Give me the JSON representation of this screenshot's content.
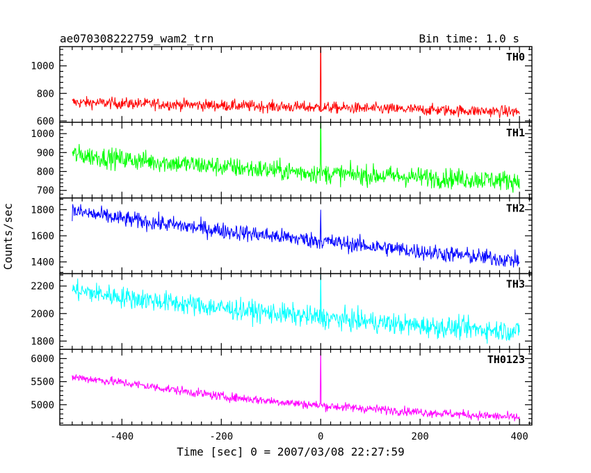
{
  "chart_data": {
    "type": "line",
    "title": "ae070308222759_wam2_trn",
    "subtitle": "Bin time: 1.0 s",
    "xlabel": "Time [sec] 0 = 2007/03/08 22:27:59",
    "ylabel": "Counts/sec",
    "xlim": [
      -525,
      425
    ],
    "x_ticks": [
      -400,
      -200,
      0,
      200,
      400
    ],
    "x_range_data": [
      -500,
      400
    ],
    "grid": false,
    "panels": [
      {
        "name": "TH0",
        "color": "#ff0000",
        "ylim": [
          590,
          1140
        ],
        "y_ticks": [
          600,
          800,
          1000
        ],
        "trend": [
          [
            -500,
            735
          ],
          [
            -300,
            720
          ],
          [
            -100,
            705
          ],
          [
            100,
            690
          ],
          [
            400,
            665
          ]
        ],
        "noise": 30,
        "spike": 1400
      },
      {
        "name": "TH1",
        "color": "#00ff00",
        "ylim": [
          660,
          1060
        ],
        "y_ticks": [
          700,
          800,
          900,
          1000
        ],
        "trend": [
          [
            -500,
            890
          ],
          [
            -400,
            865
          ],
          [
            -200,
            825
          ],
          [
            0,
            790
          ],
          [
            200,
            770
          ],
          [
            400,
            750
          ]
        ],
        "noise": 38,
        "spike": 1200
      },
      {
        "name": "TH2",
        "color": "#0000ff",
        "ylim": [
          1310,
          1890
        ],
        "y_ticks": [
          1400,
          1600,
          1800
        ],
        "trend": [
          [
            -500,
            1790
          ],
          [
            -400,
            1730
          ],
          [
            -200,
            1640
          ],
          [
            0,
            1560
          ],
          [
            200,
            1480
          ],
          [
            400,
            1410
          ]
        ],
        "noise": 45,
        "spike": 1800
      },
      {
        "name": "TH3",
        "color": "#00ffff",
        "ylim": [
          1740,
          2290
        ],
        "y_ticks": [
          1800,
          2000,
          2200
        ],
        "trend": [
          [
            -500,
            2170
          ],
          [
            -400,
            2120
          ],
          [
            -200,
            2040
          ],
          [
            0,
            1970
          ],
          [
            200,
            1910
          ],
          [
            400,
            1870
          ]
        ],
        "noise": 55,
        "spike": 2300
      },
      {
        "name": "TH0123",
        "color": "#ff00ff",
        "ylim": [
          4560,
          6200
        ],
        "y_ticks": [
          5000,
          5500,
          6000
        ],
        "trend": [
          [
            -500,
            5600
          ],
          [
            -400,
            5480
          ],
          [
            -200,
            5180
          ],
          [
            0,
            4980
          ],
          [
            200,
            4840
          ],
          [
            400,
            4720
          ]
        ],
        "noise": 70,
        "spike": 6300
      }
    ]
  }
}
